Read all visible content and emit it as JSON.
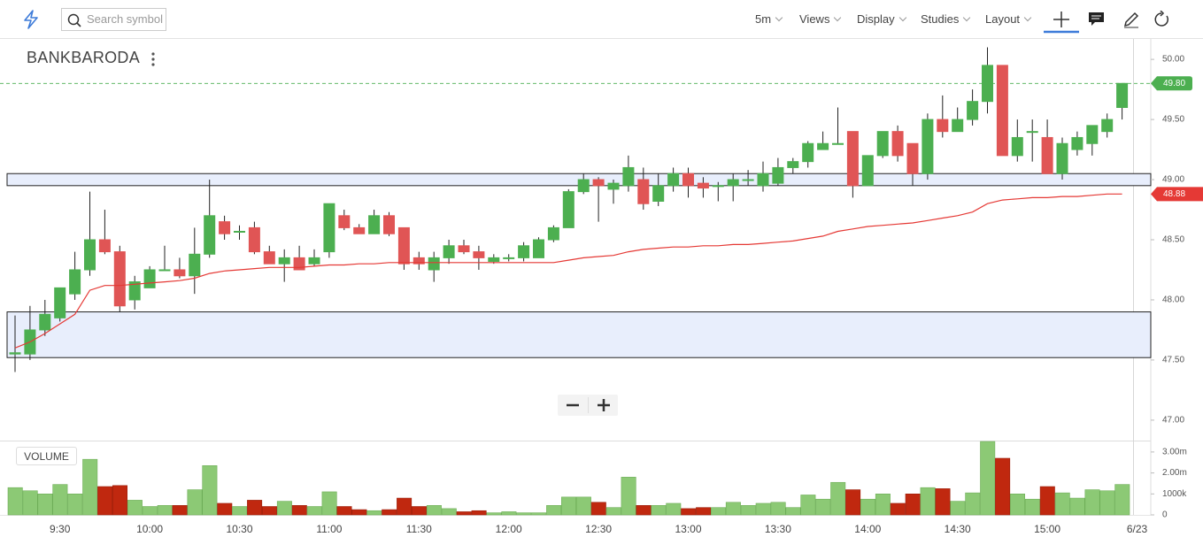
{
  "toolbar": {
    "search_placeholder": "Search symbol",
    "interval": "5m",
    "menus": [
      "Views",
      "Display",
      "Studies",
      "Layout"
    ]
  },
  "chart_data": [
    {
      "type": "candlestick",
      "title": "BANKBARODA",
      "categories": [
        null,
        null,
        null,
        "9:30",
        null,
        null,
        null,
        null,
        null,
        "10:00",
        null,
        null,
        null,
        null,
        null,
        "10:30",
        null,
        null,
        null,
        null,
        null,
        "11:00",
        null,
        null,
        null,
        null,
        null,
        "11:30",
        null,
        null,
        null,
        null,
        null,
        "12:00",
        null,
        null,
        null,
        null,
        null,
        "12:30",
        null,
        null,
        null,
        null,
        null,
        "13:00",
        null,
        null,
        null,
        null,
        null,
        "13:30",
        null,
        null,
        null,
        null,
        null,
        "14:00",
        null,
        null,
        null,
        null,
        null,
        "14:30",
        null,
        null,
        null,
        null,
        null,
        "15:00",
        null,
        null,
        null,
        null,
        null
      ],
      "x_end_label": "6/23",
      "open": [
        47.55,
        47.55,
        47.75,
        47.85,
        48.05,
        48.25,
        48.5,
        48.4,
        48.0,
        48.1,
        48.25,
        48.25,
        48.2,
        48.38,
        48.65,
        48.57,
        48.6,
        48.4,
        48.3,
        48.35,
        48.3,
        48.4,
        48.7,
        48.6,
        48.55,
        48.7,
        48.6,
        48.35,
        48.25,
        48.35,
        48.45,
        48.4,
        48.32,
        48.35,
        48.35,
        48.35,
        48.5,
        48.6,
        48.9,
        49.0,
        48.92,
        48.95,
        49.0,
        48.82,
        48.95,
        49.05,
        48.97,
        48.95,
        48.95,
        49.0,
        48.95,
        48.97,
        49.1,
        49.15,
        49.25,
        49.3,
        49.4,
        48.95,
        49.2,
        49.4,
        49.3,
        49.05,
        49.5,
        49.4,
        49.5,
        49.65,
        49.95,
        49.2,
        49.4,
        49.35,
        49.05,
        49.25,
        49.3,
        49.4,
        49.6
      ],
      "high": [
        47.87,
        47.95,
        48.0,
        48.1,
        48.4,
        48.9,
        48.75,
        48.45,
        48.2,
        48.28,
        48.45,
        48.35,
        48.6,
        49.0,
        48.7,
        48.62,
        48.65,
        48.45,
        48.42,
        48.45,
        48.42,
        48.8,
        48.75,
        48.63,
        48.75,
        48.73,
        48.6,
        48.4,
        48.4,
        48.5,
        48.5,
        48.45,
        48.38,
        48.38,
        48.48,
        48.52,
        48.62,
        48.92,
        49.05,
        49.02,
        49.0,
        49.2,
        49.1,
        49.05,
        49.1,
        49.1,
        49.02,
        48.98,
        49.05,
        49.08,
        49.15,
        49.18,
        49.18,
        49.32,
        49.4,
        49.6,
        49.4,
        49.2,
        49.4,
        49.45,
        49.3,
        49.55,
        49.7,
        49.6,
        49.75,
        50.1,
        49.95,
        49.5,
        49.5,
        49.5,
        49.35,
        49.4,
        49.45,
        49.55,
        49.8
      ],
      "low": [
        47.4,
        47.5,
        47.7,
        47.82,
        48.0,
        48.2,
        48.38,
        47.9,
        47.92,
        48.1,
        48.25,
        48.18,
        48.05,
        48.35,
        48.5,
        48.5,
        48.38,
        48.3,
        48.15,
        48.25,
        48.28,
        48.35,
        48.58,
        48.55,
        48.55,
        48.53,
        48.25,
        48.25,
        48.15,
        48.3,
        48.38,
        48.25,
        48.3,
        48.32,
        48.32,
        48.35,
        48.48,
        48.6,
        48.88,
        48.65,
        48.8,
        48.9,
        48.75,
        48.78,
        48.9,
        48.85,
        48.85,
        48.82,
        48.82,
        48.95,
        48.9,
        48.95,
        49.05,
        49.1,
        49.25,
        49.3,
        48.85,
        48.95,
        49.18,
        49.15,
        48.95,
        49.0,
        49.35,
        49.4,
        49.45,
        49.55,
        49.2,
        49.15,
        49.15,
        49.05,
        49.0,
        49.2,
        49.2,
        49.35,
        49.5
      ],
      "close": [
        47.56,
        47.75,
        47.88,
        48.1,
        48.25,
        48.5,
        48.4,
        47.95,
        48.15,
        48.25,
        48.25,
        48.2,
        48.38,
        48.7,
        48.55,
        48.57,
        48.4,
        48.3,
        48.35,
        48.25,
        48.35,
        48.8,
        48.6,
        48.55,
        48.7,
        48.55,
        48.3,
        48.3,
        48.35,
        48.45,
        48.4,
        48.35,
        48.35,
        48.35,
        48.45,
        48.5,
        48.6,
        48.9,
        49.0,
        48.95,
        48.97,
        49.1,
        48.8,
        48.95,
        49.05,
        48.95,
        48.93,
        48.95,
        49.0,
        49.0,
        49.05,
        49.1,
        49.15,
        49.3,
        49.3,
        49.3,
        48.95,
        49.2,
        49.4,
        49.2,
        49.05,
        49.5,
        49.4,
        49.5,
        49.65,
        49.95,
        49.2,
        49.35,
        49.4,
        49.05,
        49.3,
        49.35,
        49.45,
        49.5,
        49.8
      ],
      "up_color": "#4caf50",
      "down_color": "#e05555",
      "overlay": {
        "color": "#e53935",
        "values": [
          47.6,
          47.65,
          47.72,
          47.8,
          47.88,
          48.08,
          48.12,
          48.12,
          48.13,
          48.14,
          48.15,
          48.16,
          48.18,
          48.22,
          48.24,
          48.25,
          48.26,
          48.27,
          48.27,
          48.27,
          48.28,
          48.29,
          48.29,
          48.3,
          48.3,
          48.31,
          48.31,
          48.31,
          48.31,
          48.31,
          48.31,
          48.31,
          48.31,
          48.31,
          48.31,
          48.31,
          48.31,
          48.33,
          48.35,
          48.36,
          48.37,
          48.4,
          48.42,
          48.43,
          48.44,
          48.44,
          48.45,
          48.45,
          48.46,
          48.46,
          48.47,
          48.48,
          48.49,
          48.51,
          48.53,
          48.57,
          48.59,
          48.61,
          48.62,
          48.63,
          48.64,
          48.66,
          48.68,
          48.7,
          48.73,
          48.8,
          48.83,
          48.84,
          48.85,
          48.85,
          48.86,
          48.86,
          48.87,
          48.88,
          48.88
        ]
      },
      "last_price": {
        "value": 49.8,
        "label": "49.80"
      },
      "last_price_color": "#4caf50",
      "overlay_last": {
        "value": 48.88,
        "label": "48.88"
      },
      "zones": [
        [
          48.95,
          49.05
        ],
        [
          47.52,
          47.9
        ]
      ],
      "zone_color": "#e8eefc",
      "ylim": [
        46.83,
        50.17
      ],
      "yticks": [
        {
          "value": 47,
          "label": "47.00"
        },
        {
          "value": 47.5,
          "label": "47.50"
        },
        {
          "value": 48,
          "label": "48.00"
        },
        {
          "value": 48.5,
          "label": "48.50"
        },
        {
          "value": 49,
          "label": "49.00"
        },
        {
          "value": 49.5,
          "label": "49.50"
        },
        {
          "value": 50,
          "label": "50.00"
        }
      ]
    },
    {
      "type": "volume",
      "title": "VOLUME",
      "values": [
        1300000,
        1150000,
        1000000,
        1450000,
        1000000,
        2650000,
        1350000,
        1400000,
        700000,
        400000,
        450000,
        450000,
        1200000,
        2350000,
        550000,
        400000,
        700000,
        400000,
        650000,
        450000,
        400000,
        1100000,
        400000,
        250000,
        200000,
        250000,
        800000,
        400000,
        450000,
        300000,
        150000,
        200000,
        100000,
        150000,
        100000,
        100000,
        450000,
        850000,
        850000,
        600000,
        350000,
        1800000,
        450000,
        450000,
        550000,
        300000,
        350000,
        350000,
        600000,
        450000,
        550000,
        600000,
        350000,
        950000,
        750000,
        1550000,
        1200000,
        750000,
        1000000,
        550000,
        1000000,
        1300000,
        1250000,
        650000,
        1050000,
        3500000,
        2700000,
        1000000,
        750000,
        1350000,
        1050000,
        800000,
        1200000,
        1150000,
        1450000
      ],
      "up_color": "#8cc975",
      "down_color": "#c0280f",
      "ylim": [
        0,
        3460000
      ],
      "yticks": [
        0,
        {
          "value": 1000000,
          "label": "1000k"
        },
        {
          "value": 2000000,
          "label": "2.00m"
        },
        {
          "value": 3000000,
          "label": "3.00m"
        }
      ]
    }
  ]
}
